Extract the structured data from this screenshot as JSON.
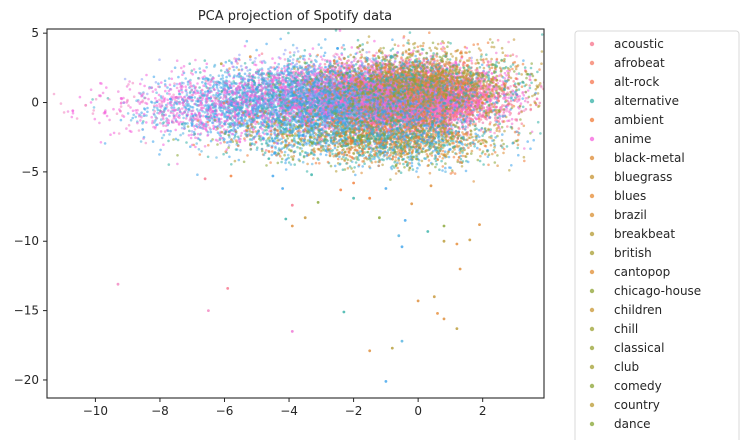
{
  "chart_data": {
    "type": "scatter",
    "title": "PCA projection of Spotify data",
    "xlabel": "",
    "ylabel": "",
    "xlim": [
      -11.5,
      3.9
    ],
    "ylim": [
      -21.3,
      5.3
    ],
    "xticks": [
      -10,
      -8,
      -6,
      -4,
      -2,
      0,
      2
    ],
    "yticks": [
      5,
      0,
      -5,
      -10,
      -15,
      -20
    ],
    "grid": false,
    "legend_position": "outside-right",
    "series": [
      {
        "name": "acoustic",
        "color": "#f77189"
      },
      {
        "name": "afrobeat",
        "color": "#f67b64"
      },
      {
        "name": "alt-rock",
        "color": "#f7754f"
      },
      {
        "name": "alternative",
        "color": "#33b0a6"
      },
      {
        "name": "ambient",
        "color": "#f17a35"
      },
      {
        "name": "anime",
        "color": "#f561dd"
      },
      {
        "name": "black-metal",
        "color": "#dd8a32"
      },
      {
        "name": "bluegrass",
        "color": "#c59332"
      },
      {
        "name": "blues",
        "color": "#e68a32"
      },
      {
        "name": "brazil",
        "color": "#d88f32"
      },
      {
        "name": "breakbeat",
        "color": "#b49a32"
      },
      {
        "name": "british",
        "color": "#a89d32"
      },
      {
        "name": "cantopop",
        "color": "#e08c32"
      },
      {
        "name": "chicago-house",
        "color": "#8ea332"
      },
      {
        "name": "children",
        "color": "#c89532"
      },
      {
        "name": "chill",
        "color": "#9ca132"
      },
      {
        "name": "classical",
        "color": "#97a232"
      },
      {
        "name": "club",
        "color": "#a39f32"
      },
      {
        "name": "comedy",
        "color": "#8ba332"
      },
      {
        "name": "country",
        "color": "#b99932"
      },
      {
        "name": "dance",
        "color": "#86a432"
      }
    ],
    "cloud": {
      "blobs": [
        {
          "cx": -0.3,
          "cy": 0.2,
          "sx": 1.3,
          "sy": 1.0,
          "n": 5200,
          "palette": [
            "#f77189",
            "#f561dd",
            "#f77189",
            "#e86aa8",
            "#f383c0"
          ]
        },
        {
          "cx": -1.2,
          "cy": 0.5,
          "sx": 1.8,
          "sy": 1.2,
          "n": 4200,
          "palette": [
            "#f77189",
            "#f561dd",
            "#ee6fd3",
            "#f383c0",
            "#3ba3ec"
          ]
        },
        {
          "cx": -3.5,
          "cy": 0.3,
          "sx": 1.8,
          "sy": 1.3,
          "n": 3000,
          "palette": [
            "#3ba3ec",
            "#50b1e0",
            "#f561dd",
            "#33b0a6",
            "#8f9ff5"
          ]
        },
        {
          "cx": -6.0,
          "cy": -0.4,
          "sx": 1.3,
          "sy": 1.2,
          "n": 1000,
          "palette": [
            "#3ba3ec",
            "#f561dd",
            "#ee6fd3",
            "#50b1e0"
          ]
        },
        {
          "cx": -8.3,
          "cy": -0.4,
          "sx": 1.1,
          "sy": 1.0,
          "n": 160,
          "palette": [
            "#f561dd",
            "#f383c0",
            "#ee6fd3"
          ]
        },
        {
          "cx": 0.3,
          "cy": 1.5,
          "sx": 1.6,
          "sy": 1.2,
          "n": 1800,
          "palette": [
            "#86a432",
            "#b49a32",
            "#f17a35",
            "#33b0a6",
            "#c59332"
          ]
        },
        {
          "cx": -0.5,
          "cy": -2.6,
          "sx": 1.6,
          "sy": 1.0,
          "n": 1500,
          "palette": [
            "#86a432",
            "#33b0a6",
            "#f17a35",
            "#dd8a32",
            "#b49a32",
            "#3ba3ec"
          ]
        },
        {
          "cx": -2.5,
          "cy": -2.3,
          "sx": 2.0,
          "sy": 1.0,
          "n": 1200,
          "palette": [
            "#33b0a6",
            "#3ba3ec",
            "#86a432",
            "#f17a35",
            "#50b1e0"
          ]
        }
      ],
      "outliers": [
        [
          -9.3,
          -13.1,
          "#f383c0"
        ],
        [
          -6.5,
          -15.0,
          "#f383c0"
        ],
        [
          -5.9,
          -13.4,
          "#f77189"
        ],
        [
          -3.9,
          -16.5,
          "#ee6fd3"
        ],
        [
          -2.3,
          -15.1,
          "#33b0a6"
        ],
        [
          -1.5,
          -17.9,
          "#dd8a32"
        ],
        [
          -1.0,
          -20.1,
          "#3ba3ec"
        ],
        [
          -0.5,
          -17.2,
          "#50b1e0"
        ],
        [
          -0.8,
          -17.7,
          "#b49a32"
        ],
        [
          0.0,
          -14.3,
          "#dd8a32"
        ],
        [
          0.5,
          -14.0,
          "#c59332"
        ],
        [
          0.6,
          -15.2,
          "#e68a32"
        ],
        [
          0.8,
          -15.6,
          "#dd8a32"
        ],
        [
          1.2,
          -16.3,
          "#b99932"
        ],
        [
          1.3,
          -12.0,
          "#dd8a32"
        ],
        [
          1.9,
          -8.8,
          "#dd8a32"
        ],
        [
          1.6,
          -9.9,
          "#c59332"
        ],
        [
          1.2,
          -10.2,
          "#e68a32"
        ],
        [
          0.8,
          -10.0,
          "#b99932"
        ],
        [
          0.8,
          -8.9,
          "#86a432"
        ],
        [
          0.3,
          -9.3,
          "#33b0a6"
        ],
        [
          -0.2,
          -7.3,
          "#dd8a32"
        ],
        [
          -0.4,
          -8.5,
          "#3ba3ec"
        ],
        [
          -0.6,
          -9.6,
          "#50b1e0"
        ],
        [
          -0.5,
          -10.4,
          "#3ba3ec"
        ],
        [
          -1.2,
          -8.3,
          "#86a432"
        ],
        [
          -2.0,
          -6.9,
          "#33b0a6"
        ],
        [
          -2.4,
          -6.3,
          "#f17a35"
        ],
        [
          -3.9,
          -8.9,
          "#dd8a32"
        ],
        [
          -4.1,
          -8.4,
          "#33b0a6"
        ],
        [
          -3.9,
          -7.4,
          "#f77189"
        ],
        [
          -4.2,
          -6.2,
          "#3ba3ec"
        ],
        [
          -4.5,
          -5.3,
          "#3ba3ec"
        ],
        [
          -5.8,
          -5.3,
          "#f17a35"
        ],
        [
          -6.6,
          -5.5,
          "#f77189"
        ],
        [
          -3.5,
          -8.3,
          "#c59332"
        ],
        [
          -3.1,
          -7.2,
          "#86a432"
        ],
        [
          -1.5,
          -6.9,
          "#f17a35"
        ],
        [
          -2.0,
          -5.8,
          "#f17a35"
        ],
        [
          -3.3,
          -5.2,
          "#33b0a6"
        ],
        [
          -1.0,
          -6.2,
          "#3ba3ec"
        ],
        [
          0.4,
          -6.0,
          "#dd8a32"
        ],
        [
          -10.7,
          -0.6,
          "#f561dd"
        ],
        [
          -10.3,
          -0.2,
          "#f383c0"
        ],
        [
          -9.7,
          -0.7,
          "#f561dd"
        ],
        [
          -9.2,
          0.3,
          "#f561dd"
        ],
        [
          -5.2,
          3.3,
          "#dd8a32"
        ],
        [
          -6.1,
          2.8,
          "#b49a32"
        ],
        [
          -2.5,
          3.9,
          "#3ba3ec"
        ],
        [
          -1.8,
          4.1,
          "#86a432"
        ],
        [
          -2.6,
          3.0,
          "#f17a35"
        ],
        [
          -1.2,
          3.7,
          "#c59332"
        ]
      ]
    }
  }
}
